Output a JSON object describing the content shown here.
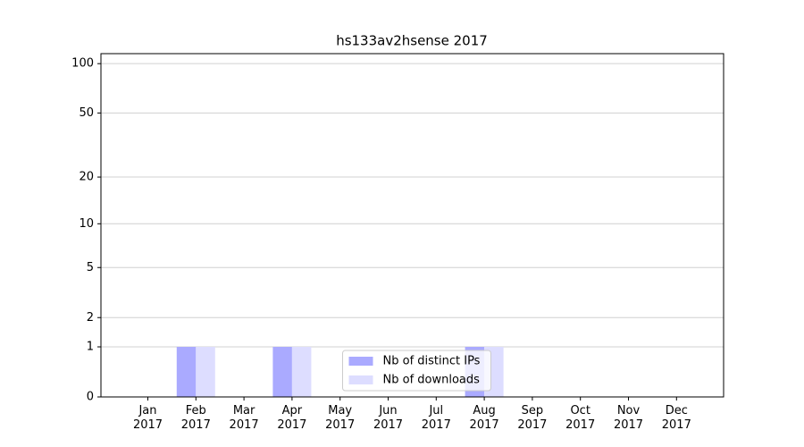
{
  "chart_data": {
    "type": "bar",
    "title": "hs133av2hsense 2017",
    "categories": [
      "Jan\n2017",
      "Feb\n2017",
      "Mar\n2017",
      "Apr\n2017",
      "May\n2017",
      "Jun\n2017",
      "Jul\n2017",
      "Aug\n2017",
      "Sep\n2017",
      "Oct\n2017",
      "Nov\n2017",
      "Dec\n2017"
    ],
    "series": [
      {
        "name": "Nb of distinct IPs",
        "color": "#aaaaff",
        "values": [
          0,
          1,
          0,
          1,
          0,
          0,
          0,
          1,
          0,
          0,
          0,
          0
        ]
      },
      {
        "name": "Nb of downloads",
        "color": "#ddddff",
        "values": [
          0,
          1,
          0,
          1,
          0,
          0,
          0,
          1,
          0,
          0,
          0,
          0
        ]
      }
    ],
    "yscale": "log1p",
    "ylim": [
      0,
      115
    ],
    "yticks": [
      0,
      1,
      2,
      5,
      10,
      20,
      50,
      100
    ],
    "grid": true,
    "legend": "lower center"
  }
}
